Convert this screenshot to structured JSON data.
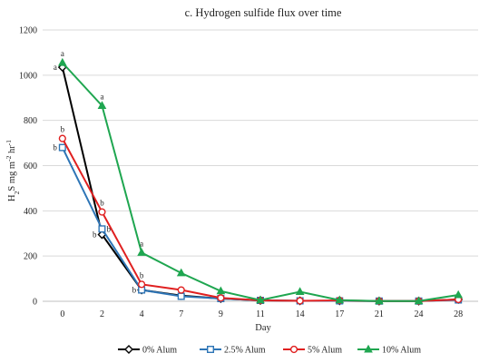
{
  "chart_data": {
    "type": "line",
    "title": "c. Hydrogen sulfide flux over time",
    "xlabel": "Day",
    "ylabel_parts": [
      "H",
      "2",
      "S mg m",
      "-2",
      " hr",
      "-1"
    ],
    "categories": [
      "0",
      "2",
      "4",
      "7",
      "9",
      "11",
      "14",
      "17",
      "21",
      "24",
      "28"
    ],
    "ylim": [
      0,
      1200
    ],
    "yticks": [
      0,
      200,
      400,
      600,
      800,
      1000,
      1200
    ],
    "grid": true,
    "legend_position": "bottom",
    "series": [
      {
        "name": "0% Alum",
        "color": "#000000",
        "marker": "diamond",
        "values": [
          1035,
          295,
          50,
          25,
          12,
          4,
          2,
          2,
          1,
          1,
          8
        ],
        "annotations": [
          {
            "i": 0,
            "text": "a",
            "side": "left"
          },
          {
            "i": 1,
            "text": "b",
            "side": "left"
          },
          {
            "i": 2,
            "text": "b",
            "side": "left"
          }
        ]
      },
      {
        "name": "2.5% Alum",
        "color": "#2E75B6",
        "marker": "square",
        "values": [
          680,
          320,
          50,
          22,
          12,
          4,
          2,
          2,
          1,
          1,
          6
        ],
        "annotations": [
          {
            "i": 0,
            "text": "b",
            "side": "left"
          },
          {
            "i": 1,
            "text": "b",
            "side": "right"
          }
        ]
      },
      {
        "name": "5% Alum",
        "color": "#E02020",
        "marker": "circle",
        "values": [
          720,
          395,
          75,
          50,
          15,
          4,
          2,
          4,
          1,
          1,
          8
        ],
        "annotations": [
          {
            "i": 0,
            "text": "b",
            "side": "top"
          },
          {
            "i": 1,
            "text": "b",
            "side": "top"
          },
          {
            "i": 2,
            "text": "b",
            "side": "top"
          }
        ]
      },
      {
        "name": "10% Alum",
        "color": "#1FA650",
        "marker": "triangle",
        "values": [
          1055,
          865,
          215,
          125,
          45,
          5,
          42,
          5,
          1,
          1,
          28
        ],
        "annotations": [
          {
            "i": 0,
            "text": "a",
            "side": "top"
          },
          {
            "i": 1,
            "text": "a",
            "side": "top"
          },
          {
            "i": 2,
            "text": "a",
            "side": "top"
          }
        ]
      }
    ]
  }
}
